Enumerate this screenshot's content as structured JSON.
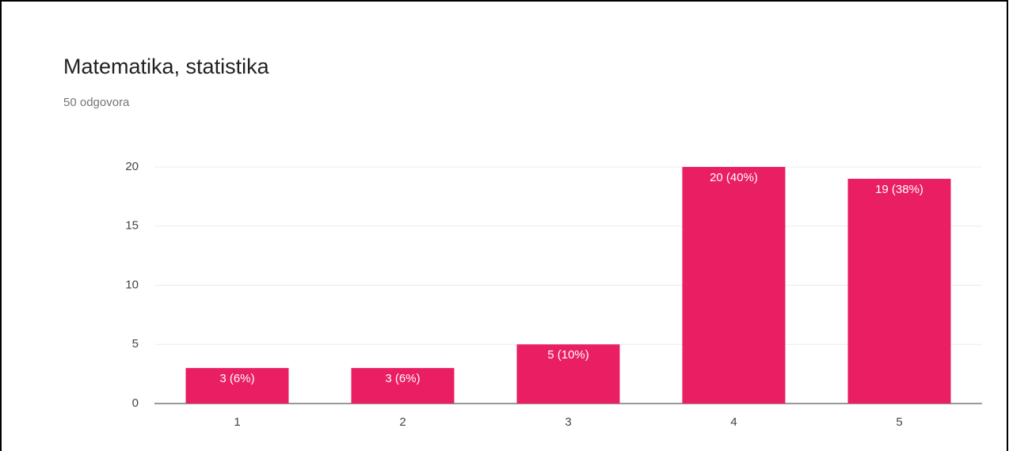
{
  "chart_data": {
    "type": "bar",
    "title": "Matematika, statistika",
    "subtitle": "50 odgovora",
    "categories": [
      "1",
      "2",
      "3",
      "4",
      "5"
    ],
    "values": [
      3,
      3,
      5,
      20,
      19
    ],
    "value_labels": [
      "3 (6%)",
      "3 (6%)",
      "5 (10%)",
      "20 (40%)",
      "19 (38%)"
    ],
    "color": "#e91e63",
    "ylim": [
      0,
      20
    ],
    "yticks": [
      0,
      5,
      10,
      15,
      20
    ],
    "grid": true
  }
}
